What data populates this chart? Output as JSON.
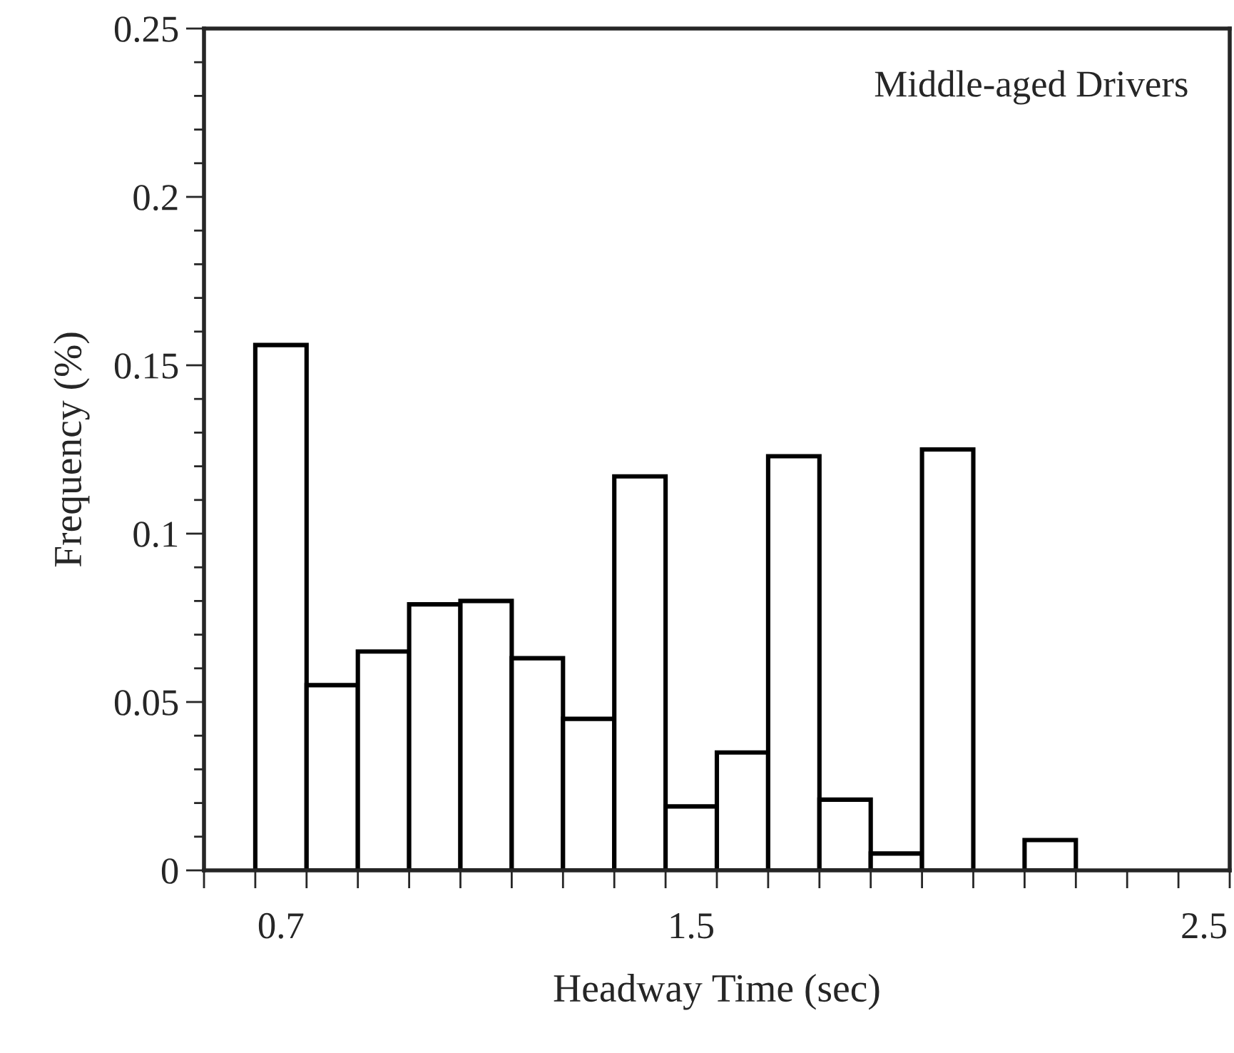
{
  "chart_data": {
    "type": "histogram",
    "bins": [
      0.55,
      0.65,
      0.75,
      0.85,
      0.95,
      1.05,
      1.15,
      1.25,
      1.35,
      1.45,
      1.55,
      1.65,
      1.75,
      1.85,
      1.95,
      2.05,
      2.15,
      2.25,
      2.35,
      2.45,
      2.55
    ],
    "values": [
      0,
      0.156,
      0.055,
      0.065,
      0.079,
      0.08,
      0.063,
      0.045,
      0.117,
      0.019,
      0.035,
      0.123,
      0.021,
      0.005,
      0.125,
      0,
      0.009,
      0,
      0,
      0
    ],
    "color": "#ffffff",
    "xlabel": "Headway Time (sec)",
    "ylabel": "Frequency (%)",
    "annotations": [
      "Middle-aged Drivers"
    ],
    "xlim": [
      0.55,
      2.55
    ],
    "xticks": [
      {
        "value": 0.55,
        "label": null
      },
      {
        "value": 0.65,
        "label": null
      },
      0.7,
      {
        "value": 0.75,
        "label": null
      },
      {
        "value": 0.85,
        "label": null
      },
      {
        "value": 0.95,
        "label": null
      },
      {
        "value": 1.05,
        "label": null
      },
      {
        "value": 1.15,
        "label": null
      },
      {
        "value": 1.25,
        "label": null
      },
      {
        "value": 1.35,
        "label": null
      },
      {
        "value": 1.45,
        "label": null
      },
      1.5,
      {
        "value": 1.55,
        "label": null
      },
      {
        "value": 1.65,
        "label": null
      },
      {
        "value": 1.75,
        "label": null
      },
      {
        "value": 1.85,
        "label": null
      },
      {
        "value": 1.95,
        "label": null
      },
      {
        "value": 2.05,
        "label": null
      },
      {
        "value": 2.15,
        "label": null
      },
      {
        "value": 2.25,
        "label": null
      },
      {
        "value": 2.35,
        "label": null
      },
      {
        "value": 2.45,
        "label": null
      },
      2.5,
      {
        "value": 2.55,
        "label": null
      }
    ],
    "ylim": [
      0,
      0.25
    ],
    "yticks": [
      0,
      0.05,
      0.1,
      0.15,
      0.2,
      0.25
    ],
    "grid": false,
    "legend": false
  }
}
